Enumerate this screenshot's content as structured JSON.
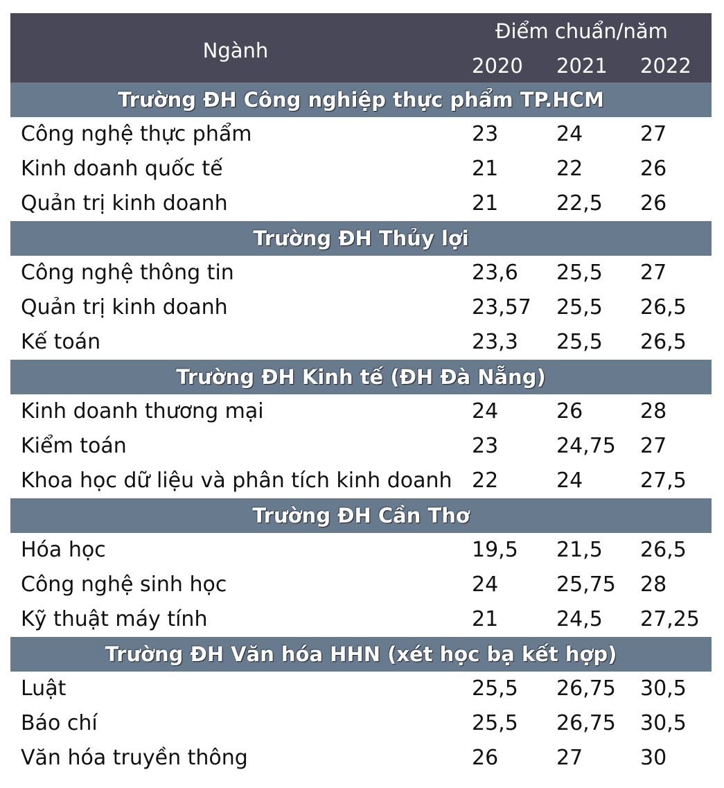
{
  "header": {
    "major_label": "Ngành",
    "group_label": "Điểm chuẩn/năm",
    "years": [
      "2020",
      "2021",
      "2022"
    ]
  },
  "sections": [
    {
      "school": "Trường ĐH Công nghiệp thực phẩm TP.HCM",
      "rows": [
        {
          "major": "Công nghệ thực phẩm",
          "scores": [
            "23",
            "24",
            "27"
          ]
        },
        {
          "major": "Kinh doanh quốc tế",
          "scores": [
            "21",
            "22",
            "26"
          ]
        },
        {
          "major": "Quản trị kinh doanh",
          "scores": [
            "21",
            "22,5",
            "26"
          ]
        }
      ]
    },
    {
      "school": "Trường ĐH Thủy lợi",
      "rows": [
        {
          "major": "Công nghệ thông tin",
          "scores": [
            "23,6",
            "25,5",
            "27"
          ]
        },
        {
          "major": "Quản trị kinh doanh",
          "scores": [
            "23,57",
            "25,5",
            "26,5"
          ]
        },
        {
          "major": "Kế toán",
          "scores": [
            "23,3",
            "25,5",
            "26,5"
          ]
        }
      ]
    },
    {
      "school": "Trường ĐH Kinh tế (ĐH Đà Nẵng)",
      "rows": [
        {
          "major": "Kinh doanh thương mại",
          "scores": [
            "24",
            "26",
            "28"
          ]
        },
        {
          "major": "Kiểm toán",
          "scores": [
            "23",
            "24,75",
            "27"
          ]
        },
        {
          "major": "Khoa học dữ liệu và phân tích kinh doanh",
          "scores": [
            "22",
            "24",
            "27,5"
          ]
        }
      ]
    },
    {
      "school": "Trường ĐH Cần Thơ",
      "rows": [
        {
          "major": "Hóa học",
          "scores": [
            "19,5",
            "21,5",
            "26,5"
          ]
        },
        {
          "major": "Công nghệ sinh học",
          "scores": [
            "24",
            "25,75",
            "28"
          ]
        },
        {
          "major": "Kỹ thuật máy tính",
          "scores": [
            "21",
            "24,5",
            "27,25"
          ]
        }
      ]
    },
    {
      "school": "Trường ĐH Văn hóa HHN (xét học bạ kết hợp)",
      "rows": [
        {
          "major": "Luật",
          "scores": [
            "25,5",
            "26,75",
            "30,5"
          ]
        },
        {
          "major": "Báo chí",
          "scores": [
            "25,5",
            "26,75",
            "30,5"
          ]
        },
        {
          "major": "Văn hóa truyền thông",
          "scores": [
            "26",
            "27",
            "30"
          ]
        }
      ]
    }
  ],
  "colors": {
    "header_bg": "#484858",
    "section_bg": "#687a8e",
    "text": "#111111"
  }
}
